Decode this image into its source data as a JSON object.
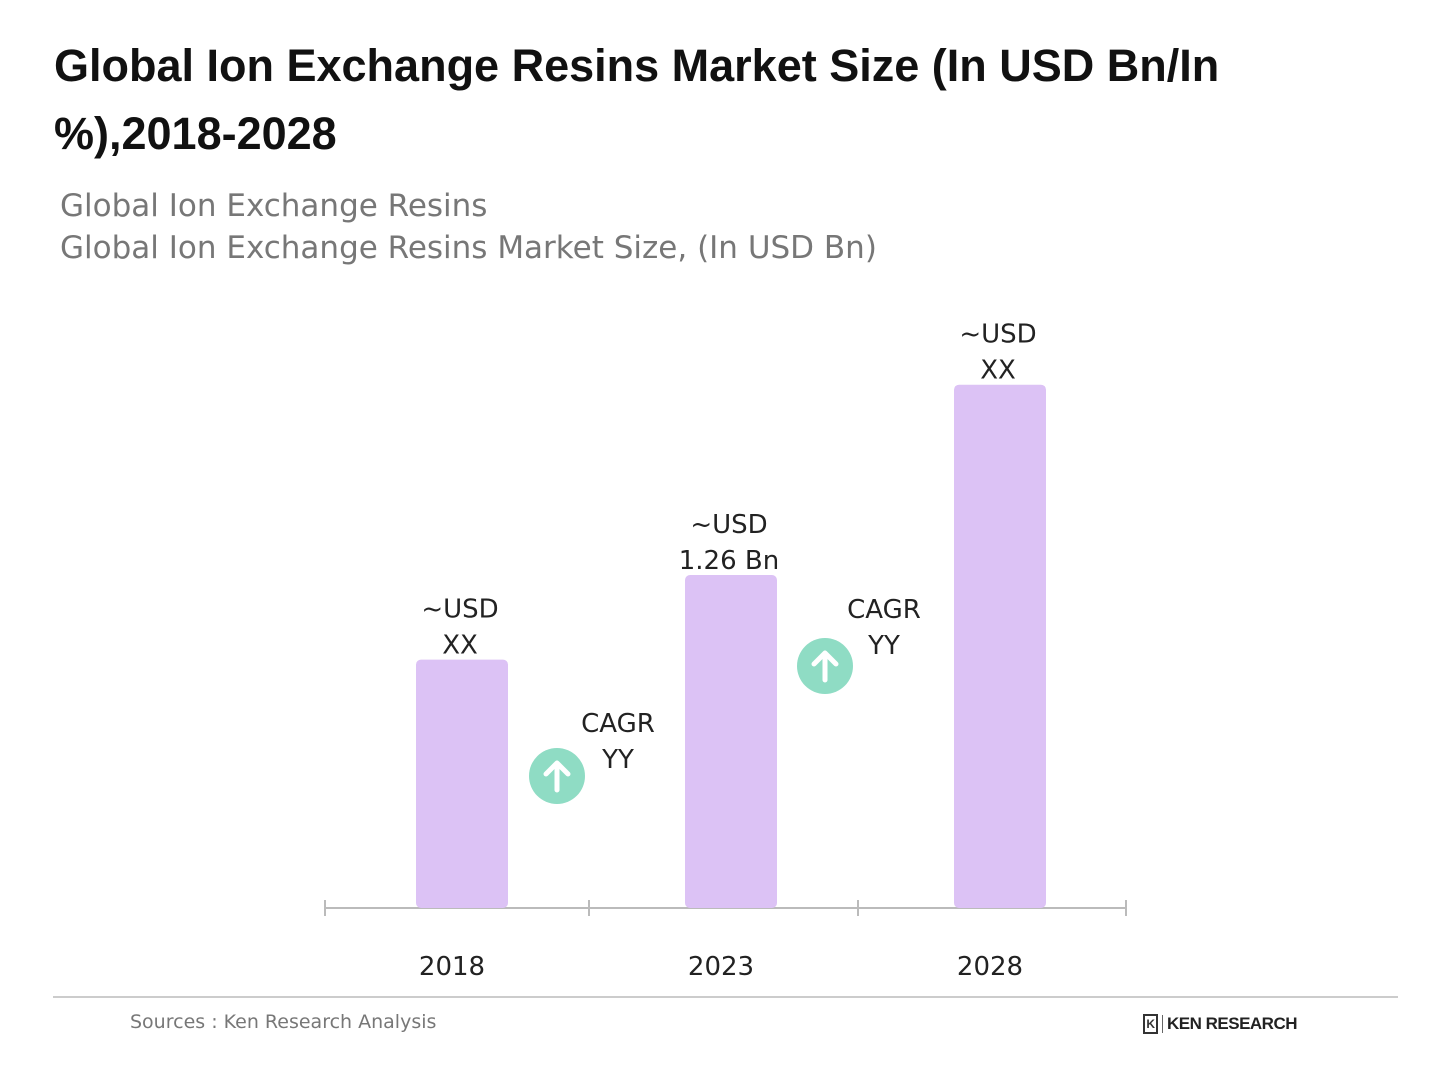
{
  "title": "Global Ion Exchange Resins Market Size (In USD Bn/In %),2018-2028",
  "subtitle_1": "Global Ion Exchange Resins",
  "subtitle_2": "Global Ion Exchange Resins Market Size, (In USD Bn)",
  "footer": {
    "source": "Sources : Ken Research Analysis",
    "logo_text": "KEN RESEARCH"
  },
  "colors": {
    "bar": "#dcc2f5",
    "cagr_circle": "#8fdcc4",
    "axis": "#bbbbbb"
  },
  "chart_data": {
    "type": "bar",
    "categories": [
      "2018",
      "2023",
      "2028"
    ],
    "values": [
      0.94,
      1.26,
      1.98
    ],
    "data_labels": [
      [
        "~USD",
        "XX"
      ],
      [
        "~USD",
        "1.26 Bn"
      ],
      [
        "~USD",
        "XX"
      ]
    ],
    "cagr_labels": [
      [
        "CAGR",
        "YY"
      ],
      [
        "CAGR",
        "YY"
      ]
    ],
    "cagr_icon": "arrow-up-icon",
    "ylim": [
      0,
      2.1
    ],
    "grid": false
  }
}
